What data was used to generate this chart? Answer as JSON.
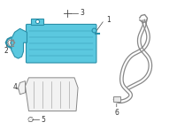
{
  "bg_color": "#ffffff",
  "cooler_fill": "#5bc8df",
  "cooler_stroke": "#2a8fa8",
  "gray_stroke": "#888888",
  "gray_light": "#aaaaaa",
  "label_color": "#333333",
  "label_fs": 5.5,
  "leader_lw": 0.5,
  "leader_color": "#444444",
  "fig_w": 2.0,
  "fig_h": 1.47,
  "dpi": 100
}
